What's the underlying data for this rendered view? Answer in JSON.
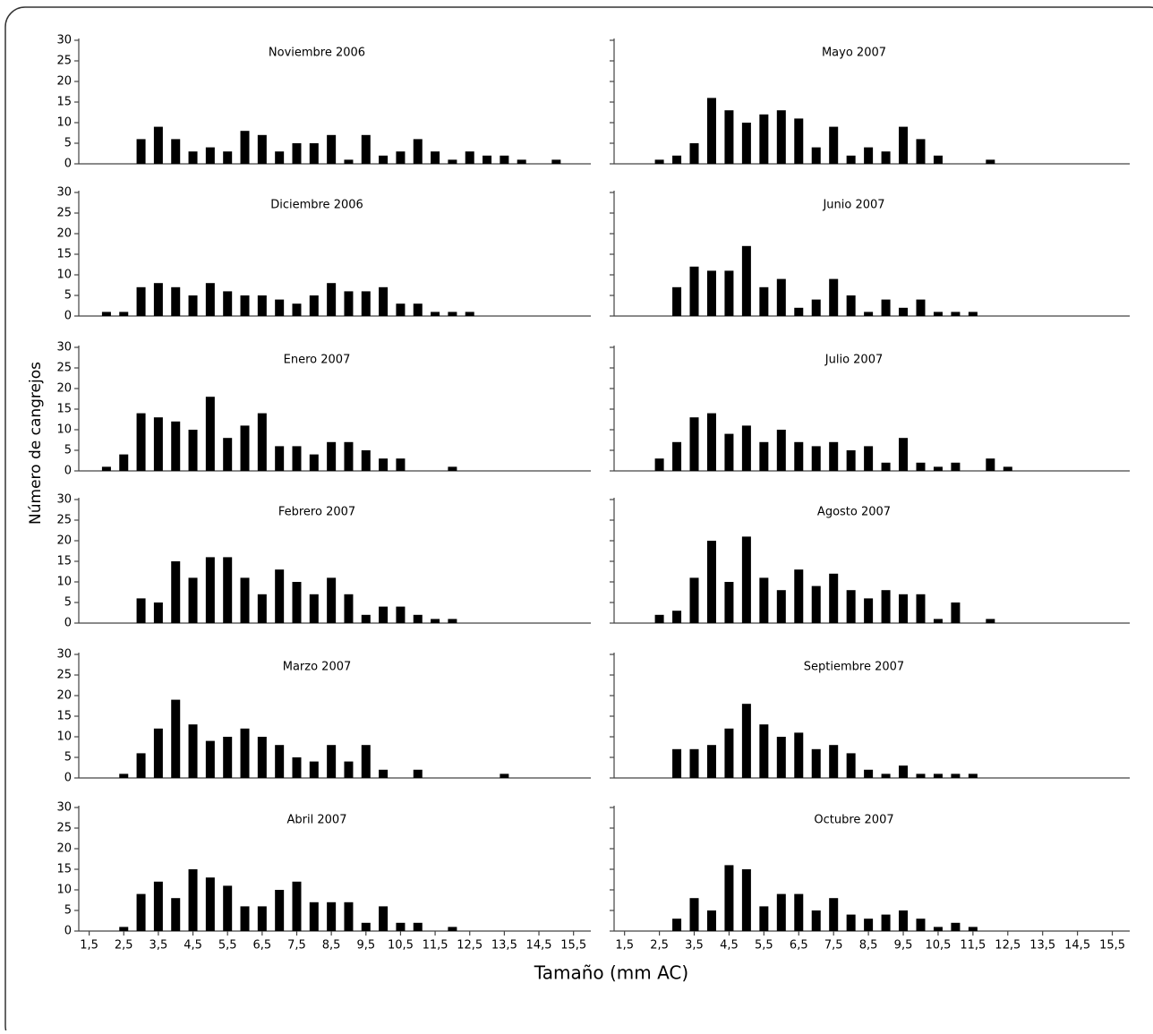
{
  "y_label": "Número de cangrejos",
  "x_label": "Tamaño (mm AC)",
  "chart_data": [
    {
      "type": "bar",
      "title": "Noviembre 2006",
      "color": "#000000",
      "ylim": [
        0,
        30
      ],
      "yticks": [
        0,
        5,
        10,
        15,
        20,
        25,
        30
      ],
      "xlim": [
        1.2,
        16
      ],
      "ytick_labels": true,
      "x": [
        3,
        3.5,
        4,
        4.5,
        5,
        5.5,
        6,
        6.5,
        7,
        7.5,
        8,
        8.5,
        9,
        9.5,
        10,
        10.5,
        11,
        11.5,
        12,
        12.5,
        13,
        13.5,
        14,
        14.5,
        15
      ],
      "values": [
        6,
        9,
        6,
        3,
        4,
        3,
        8,
        7,
        3,
        5,
        5,
        7,
        1,
        7,
        2,
        3,
        6,
        3,
        1,
        3,
        2,
        2,
        1,
        0,
        1
      ]
    },
    {
      "type": "bar",
      "title": "Diciembre 2006",
      "color": "#000000",
      "ylim": [
        0,
        30
      ],
      "yticks": [
        0,
        5,
        10,
        15,
        20,
        25,
        30
      ],
      "xlim": [
        1.2,
        16
      ],
      "ytick_labels": true,
      "x": [
        2,
        2.5,
        3,
        3.5,
        4,
        4.5,
        5,
        5.5,
        6,
        6.5,
        7,
        7.5,
        8,
        8.5,
        9,
        9.5,
        10,
        10.5,
        11,
        11.5,
        12,
        12.5
      ],
      "values": [
        1,
        1,
        7,
        8,
        7,
        5,
        8,
        6,
        5,
        5,
        4,
        3,
        5,
        8,
        6,
        6,
        7,
        3,
        3,
        1,
        1,
        1
      ]
    },
    {
      "type": "bar",
      "title": "Enero 2007",
      "color": "#000000",
      "ylim": [
        0,
        30
      ],
      "yticks": [
        0,
        5,
        10,
        15,
        20,
        25,
        30
      ],
      "xlim": [
        1.2,
        16
      ],
      "ytick_labels": true,
      "x": [
        2,
        2.5,
        3,
        3.5,
        4,
        4.5,
        5,
        5.5,
        6,
        6.5,
        7,
        7.5,
        8,
        8.5,
        9,
        9.5,
        10,
        10.5,
        11,
        11.5,
        12
      ],
      "values": [
        1,
        4,
        14,
        13,
        12,
        10,
        18,
        8,
        11,
        14,
        6,
        6,
        4,
        7,
        7,
        5,
        3,
        3,
        0,
        0,
        1
      ]
    },
    {
      "type": "bar",
      "title": "Febrero 2007",
      "color": "#000000",
      "ylim": [
        0,
        30
      ],
      "yticks": [
        0,
        5,
        10,
        15,
        20,
        25,
        30
      ],
      "xlim": [
        1.2,
        16
      ],
      "ytick_labels": true,
      "x": [
        3,
        3.5,
        4,
        4.5,
        5,
        5.5,
        6,
        6.5,
        7,
        7.5,
        8,
        8.5,
        9,
        9.5,
        10,
        10.5,
        11,
        11.5,
        12
      ],
      "values": [
        6,
        5,
        15,
        11,
        16,
        16,
        11,
        7,
        13,
        10,
        7,
        11,
        7,
        2,
        4,
        4,
        2,
        1,
        1
      ]
    },
    {
      "type": "bar",
      "title": "Marzo 2007",
      "color": "#000000",
      "ylim": [
        0,
        30
      ],
      "yticks": [
        0,
        5,
        10,
        15,
        20,
        25,
        30
      ],
      "xlim": [
        1.2,
        16
      ],
      "ytick_labels": true,
      "x": [
        2.5,
        3,
        3.5,
        4,
        4.5,
        5,
        5.5,
        6,
        6.5,
        7,
        7.5,
        8,
        8.5,
        9,
        9.5,
        10,
        10.5,
        11,
        11.5,
        12,
        12.5,
        13,
        13.5
      ],
      "values": [
        1,
        6,
        12,
        19,
        13,
        9,
        10,
        12,
        10,
        8,
        5,
        4,
        8,
        4,
        8,
        2,
        0,
        2,
        0,
        0,
        0,
        0,
        1
      ]
    },
    {
      "type": "bar",
      "title": "Abril 2007",
      "color": "#000000",
      "ylim": [
        0,
        30
      ],
      "yticks": [
        0,
        5,
        10,
        15,
        20,
        25,
        30
      ],
      "xlim": [
        1.2,
        16
      ],
      "ytick_labels": true,
      "x": [
        2.5,
        3,
        3.5,
        4,
        4.5,
        5,
        5.5,
        6,
        6.5,
        7,
        7.5,
        8,
        8.5,
        9,
        9.5,
        10,
        10.5,
        11,
        11.5,
        12
      ],
      "values": [
        1,
        9,
        12,
        8,
        15,
        13,
        11,
        6,
        6,
        10,
        12,
        7,
        7,
        7,
        2,
        6,
        2,
        2,
        0,
        1
      ],
      "xticks": [
        {
          "value": 1.5,
          "label": "1,5"
        },
        {
          "value": 2.5,
          "label": "2,5"
        },
        {
          "value": 3.5,
          "label": "3,5"
        },
        {
          "value": 4.5,
          "label": "4,5"
        },
        {
          "value": 5.5,
          "label": "5,5"
        },
        {
          "value": 6.5,
          "label": "6,5"
        },
        {
          "value": 7.5,
          "label": "7,5"
        },
        {
          "value": 8.5,
          "label": "8,5"
        },
        {
          "value": 9.5,
          "label": "9,5"
        },
        {
          "value": 10.5,
          "label": "10,5"
        },
        {
          "value": 11.5,
          "label": "11,5"
        },
        {
          "value": 12.5,
          "label": "12,5"
        },
        {
          "value": 13.5,
          "label": "13,5"
        },
        {
          "value": 14.5,
          "label": "14,5"
        },
        {
          "value": 15.5,
          "label": "15,5"
        }
      ]
    },
    {
      "type": "bar",
      "title": "Mayo 2007",
      "color": "#000000",
      "ylim": [
        0,
        30
      ],
      "yticks": [
        0,
        5,
        10,
        15,
        20,
        25,
        30
      ],
      "xlim": [
        1.2,
        16
      ],
      "ytick_labels": false,
      "x": [
        2.5,
        3,
        3.5,
        4,
        4.5,
        5,
        5.5,
        6,
        6.5,
        7,
        7.5,
        8,
        8.5,
        9,
        9.5,
        10,
        10.5,
        11,
        11.5,
        12
      ],
      "values": [
        1,
        2,
        5,
        16,
        13,
        10,
        12,
        13,
        11,
        4,
        9,
        2,
        4,
        3,
        9,
        6,
        2,
        0,
        0,
        1
      ]
    },
    {
      "type": "bar",
      "title": "Junio 2007",
      "color": "#000000",
      "ylim": [
        0,
        30
      ],
      "yticks": [
        0,
        5,
        10,
        15,
        20,
        25,
        30
      ],
      "xlim": [
        1.2,
        16
      ],
      "ytick_labels": false,
      "x": [
        3,
        3.5,
        4,
        4.5,
        5,
        5.5,
        6,
        6.5,
        7,
        7.5,
        8,
        8.5,
        9,
        9.5,
        10,
        10.5,
        11,
        11.5
      ],
      "values": [
        7,
        12,
        11,
        11,
        17,
        7,
        9,
        2,
        4,
        9,
        5,
        1,
        4,
        2,
        4,
        1,
        1,
        1
      ]
    },
    {
      "type": "bar",
      "title": "Julio 2007",
      "color": "#000000",
      "ylim": [
        0,
        30
      ],
      "yticks": [
        0,
        5,
        10,
        15,
        20,
        25,
        30
      ],
      "xlim": [
        1.2,
        16
      ],
      "ytick_labels": false,
      "x": [
        2.5,
        3,
        3.5,
        4,
        4.5,
        5,
        5.5,
        6,
        6.5,
        7,
        7.5,
        8,
        8.5,
        9,
        9.5,
        10,
        10.5,
        11,
        11.5,
        12,
        12.5
      ],
      "values": [
        3,
        7,
        13,
        14,
        9,
        11,
        7,
        10,
        7,
        6,
        7,
        5,
        6,
        2,
        8,
        2,
        1,
        2,
        0,
        3,
        1
      ]
    },
    {
      "type": "bar",
      "title": "Agosto 2007",
      "color": "#000000",
      "ylim": [
        0,
        30
      ],
      "yticks": [
        0,
        5,
        10,
        15,
        20,
        25,
        30
      ],
      "xlim": [
        1.2,
        16
      ],
      "ytick_labels": false,
      "x": [
        2.5,
        3,
        3.5,
        4,
        4.5,
        5,
        5.5,
        6,
        6.5,
        7,
        7.5,
        8,
        8.5,
        9,
        9.5,
        10,
        10.5,
        11,
        11.5,
        12
      ],
      "values": [
        2,
        3,
        11,
        20,
        10,
        21,
        11,
        8,
        13,
        9,
        12,
        8,
        6,
        8,
        7,
        7,
        1,
        5,
        0,
        1
      ]
    },
    {
      "type": "bar",
      "title": "Septiembre 2007",
      "color": "#000000",
      "ylim": [
        0,
        30
      ],
      "yticks": [
        0,
        5,
        10,
        15,
        20,
        25,
        30
      ],
      "xlim": [
        1.2,
        16
      ],
      "ytick_labels": false,
      "x": [
        3,
        3.5,
        4,
        4.5,
        5,
        5.5,
        6,
        6.5,
        7,
        7.5,
        8,
        8.5,
        9,
        9.5,
        10,
        10.5,
        11,
        11.5
      ],
      "values": [
        7,
        7,
        8,
        12,
        18,
        13,
        10,
        11,
        7,
        8,
        6,
        2,
        1,
        3,
        1,
        1,
        1,
        1
      ]
    },
    {
      "type": "bar",
      "title": "Octubre 2007",
      "color": "#000000",
      "ylim": [
        0,
        30
      ],
      "yticks": [
        0,
        5,
        10,
        15,
        20,
        25,
        30
      ],
      "xlim": [
        1.2,
        16
      ],
      "ytick_labels": false,
      "x": [
        3,
        3.5,
        4,
        4.5,
        5,
        5.5,
        6,
        6.5,
        7,
        7.5,
        8,
        8.5,
        9,
        9.5,
        10,
        10.5,
        11,
        11.5
      ],
      "values": [
        3,
        8,
        5,
        16,
        15,
        6,
        9,
        9,
        5,
        8,
        4,
        3,
        4,
        5,
        3,
        1,
        2,
        1
      ],
      "xticks": [
        {
          "value": 1.5,
          "label": "1,5"
        },
        {
          "value": 2.5,
          "label": "2,5"
        },
        {
          "value": 3.5,
          "label": "3,5"
        },
        {
          "value": 4.5,
          "label": "4,5"
        },
        {
          "value": 5.5,
          "label": "5,5"
        },
        {
          "value": 6.5,
          "label": "6,5"
        },
        {
          "value": 7.5,
          "label": "7,5"
        },
        {
          "value": 8.5,
          "label": "8,5"
        },
        {
          "value": 9.5,
          "label": "9,5"
        },
        {
          "value": 10.5,
          "label": "10,5"
        },
        {
          "value": 11.5,
          "label": "11,5"
        },
        {
          "value": 12.5,
          "label": "12,5"
        },
        {
          "value": 13.5,
          "label": "13,5"
        },
        {
          "value": 14.5,
          "label": "14,5"
        },
        {
          "value": 15.5,
          "label": "15,5"
        }
      ]
    }
  ]
}
